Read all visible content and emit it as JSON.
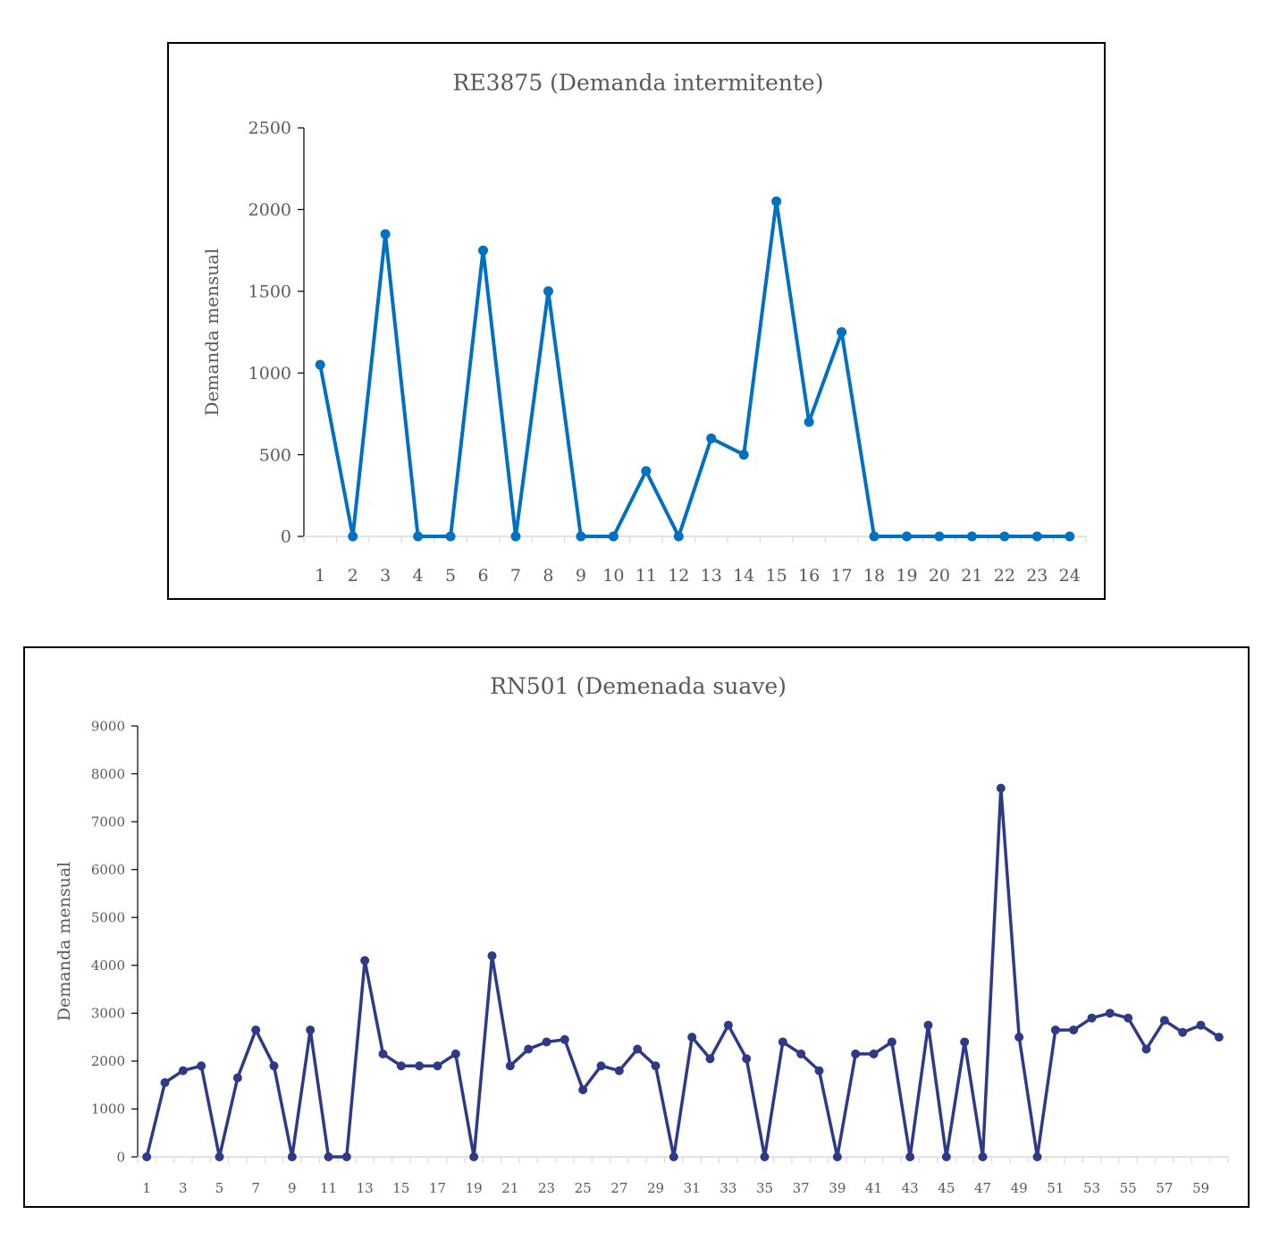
{
  "charts": [
    {
      "type": "line",
      "title": "RE3875 (Demanda intermitente)",
      "ylabel": "Demanda mensual",
      "xlabel": "",
      "ylim": [
        0,
        2500
      ],
      "yticks": [
        0,
        500,
        1000,
        1500,
        2000,
        2500
      ],
      "x": [
        1,
        2,
        3,
        4,
        5,
        6,
        7,
        8,
        9,
        10,
        11,
        12,
        13,
        14,
        15,
        16,
        17,
        18,
        19,
        20,
        21,
        22,
        23,
        24
      ],
      "xtick_labels": [
        "1",
        "2",
        "3",
        "4",
        "5",
        "6",
        "7",
        "8",
        "9",
        "10",
        "11",
        "12",
        "13",
        "14",
        "15",
        "16",
        "17",
        "18",
        "19",
        "20",
        "21",
        "22",
        "23",
        "24"
      ],
      "values": [
        1050,
        0,
        1850,
        0,
        0,
        1750,
        0,
        1500,
        0,
        0,
        400,
        0,
        600,
        500,
        2050,
        700,
        1250,
        0,
        0,
        0,
        0,
        0,
        0,
        0
      ],
      "color": "#0070C0",
      "legend": "none",
      "grid": false
    },
    {
      "type": "line",
      "title": "RN501 (Demenada suave)",
      "ylabel": "Demanda mensual",
      "xlabel": "",
      "ylim": [
        0,
        9000
      ],
      "yticks": [
        0,
        1000,
        2000,
        3000,
        4000,
        5000,
        6000,
        7000,
        8000,
        9000
      ],
      "x": [
        1,
        2,
        3,
        4,
        5,
        6,
        7,
        8,
        9,
        10,
        11,
        12,
        13,
        14,
        15,
        16,
        17,
        18,
        19,
        20,
        21,
        22,
        23,
        24,
        25,
        26,
        27,
        28,
        29,
        30,
        31,
        32,
        33,
        34,
        35,
        36,
        37,
        38,
        39,
        40,
        41,
        42,
        43,
        44,
        45,
        46,
        47,
        48,
        49,
        50,
        51,
        52,
        53,
        54,
        55,
        56,
        57,
        58,
        59,
        60
      ],
      "xtick_labels": [
        "1",
        "3",
        "5",
        "7",
        "9",
        "11",
        "13",
        "15",
        "17",
        "19",
        "21",
        "23",
        "25",
        "27",
        "29",
        "31",
        "33",
        "35",
        "37",
        "39",
        "41",
        "43",
        "45",
        "47",
        "49",
        "51",
        "53",
        "55",
        "57",
        "59"
      ],
      "values": [
        0,
        1550,
        1800,
        1900,
        0,
        1650,
        2650,
        1900,
        0,
        2650,
        0,
        0,
        4100,
        2150,
        1900,
        1900,
        1900,
        2150,
        0,
        4200,
        1900,
        2250,
        2400,
        2450,
        1400,
        1900,
        1800,
        2250,
        1900,
        0,
        2500,
        2050,
        2750,
        2050,
        0,
        2400,
        2150,
        1800,
        0,
        2150,
        2150,
        2400,
        0,
        2750,
        0,
        2400,
        0,
        7700,
        2500,
        0,
        2650,
        2650,
        2900,
        3000,
        2900,
        2250,
        2850,
        2600,
        2750,
        2500
      ],
      "color": "#2E3A87",
      "legend": "none",
      "grid": false
    }
  ]
}
